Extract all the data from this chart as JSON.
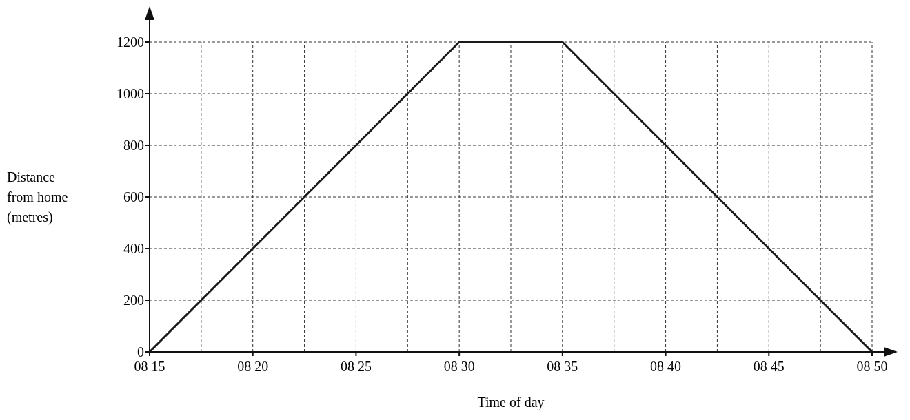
{
  "chart_data": {
    "type": "line",
    "xlabel": "Time of day",
    "ylabel": "Distance from home (metres)",
    "categories": [
      "08 15",
      null,
      "08 20",
      null,
      "08 25",
      null,
      "08 30",
      null,
      "08 35",
      null,
      "08 40",
      null,
      "08 45",
      null,
      "08 50"
    ],
    "series": [
      {
        "color": "#1a1a1a",
        "values": [
          0,
          200,
          400,
          600,
          800,
          1000,
          1200,
          1200,
          1200,
          1000,
          800,
          600,
          400,
          200,
          0
        ]
      }
    ],
    "ylim": [
      0,
      1200
    ],
    "yticks": [
      0,
      200,
      400,
      600,
      800,
      1000,
      1200
    ],
    "grid": true,
    "marker": "none",
    "line_style": "solid"
  }
}
